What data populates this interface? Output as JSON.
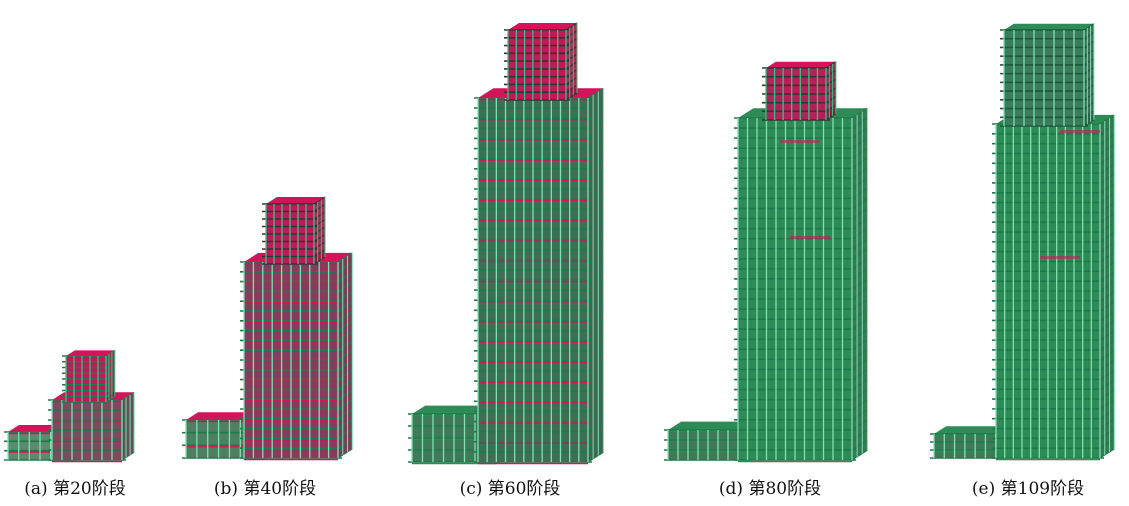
{
  "figure": {
    "panels": [
      {
        "id": "a",
        "caption": "(a) 第20阶段",
        "stage": 20
      },
      {
        "id": "b",
        "caption": "(b) 第40阶段",
        "stage": 40
      },
      {
        "id": "c",
        "caption": "(c) 第60阶段",
        "stage": 60
      },
      {
        "id": "d",
        "caption": "(d) 第80阶段",
        "stage": 80
      },
      {
        "id": "e",
        "caption": "(e) 第109阶段",
        "stage": 109
      }
    ],
    "colors": {
      "slab": "#d4145a",
      "frame": "#1e7a4a",
      "frame_light": "#3fbf7f",
      "column": "#7fe0b0",
      "core_dark": "#2a3a30"
    }
  }
}
